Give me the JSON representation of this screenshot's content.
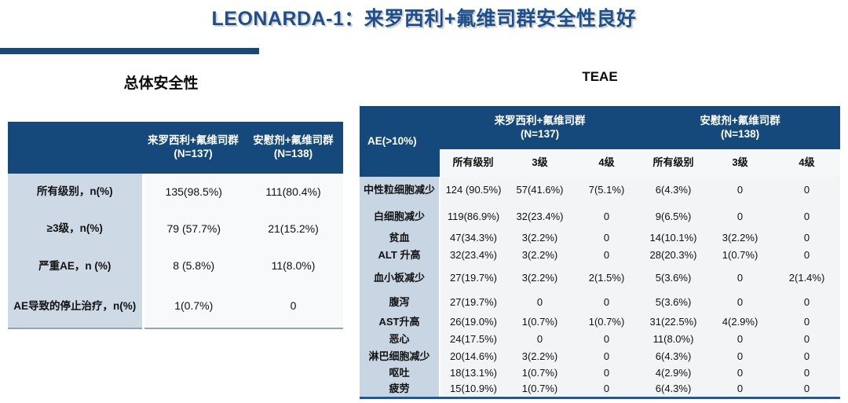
{
  "slide": {
    "title": "LEONARDA-1：来罗西利+氟维司群安全性良好",
    "accent_color": "#15497C"
  },
  "overall_safety": {
    "section_title": "总体安全性",
    "column_groups": [
      {
        "label": "来罗西利+氟维司群",
        "n": "(N=137)"
      },
      {
        "label": "安慰剂+氟维司群",
        "n": "(N=138)"
      }
    ],
    "rows": [
      {
        "label": "所有级别，n(%)",
        "values": [
          "135(98.5%)",
          "111(80.4%)"
        ]
      },
      {
        "label": "≥3级，n(%)",
        "values": [
          "79 (57.7%)",
          "21(15.2%)"
        ]
      },
      {
        "label": "严重AE，n (%)",
        "values": [
          "8 (5.8%)",
          "11(8.0%)"
        ]
      },
      {
        "label": "AE导致的停止治疗，n(%)",
        "values": [
          "1(0.7%)",
          "0"
        ]
      }
    ]
  },
  "teae": {
    "section_title": "TEAE",
    "row_header": "AE(>10%)",
    "column_groups": [
      {
        "label": "来罗西利+氟维司群",
        "n": "(N=137)"
      },
      {
        "label": "安慰剂+氟维司群",
        "n": "(N=138)"
      }
    ],
    "sub_columns": [
      "所有级别",
      "3级",
      "4级",
      "所有级别",
      "3级",
      "4级"
    ],
    "rows": [
      {
        "label": "中性粒细胞减少",
        "values": [
          "124 (90.5%)",
          "57(41.6%)",
          "7(5.1%)",
          "6(4.3%)",
          "0",
          "0"
        ]
      },
      {
        "label": "白细胞减少",
        "values": [
          "119(86.9%)",
          "32(23.4%)",
          "0",
          "9(6.5%)",
          "0",
          "0"
        ]
      },
      {
        "label": "贫血",
        "values": [
          "47(34.3%)",
          "3(2.2%)",
          "0",
          "14(10.1%)",
          "3(2.2%)",
          "0"
        ]
      },
      {
        "label": "ALT 升高",
        "values": [
          "32(23.4%)",
          "3(2.2%)",
          "0",
          "28(20.3%)",
          "1(0.7%)",
          "0"
        ]
      },
      {
        "label": "血小板减少",
        "values": [
          "27(19.7%)",
          "3(2.2%)",
          "2(1.5%)",
          "5(3.6%)",
          "0",
          "2(1.4%)"
        ]
      },
      {
        "label": "腹泻",
        "values": [
          "27(19.7%)",
          "0",
          "0",
          "5(3.6%)",
          "0",
          "0"
        ]
      },
      {
        "label": "AST升高",
        "values": [
          "26(19.0%)",
          "1(0.7%)",
          "1(0.7%)",
          "31(22.5%)",
          "4(2.9%)",
          "0"
        ]
      },
      {
        "label": "恶心",
        "values": [
          "24(17.5%)",
          "0",
          "0",
          "11(8.0%)",
          "0",
          "0"
        ]
      },
      {
        "label": "淋巴细胞减少",
        "values": [
          "20(14.6%)",
          "3(2.2%)",
          "0",
          "6(4.3%)",
          "0",
          "0"
        ]
      },
      {
        "label": "呕吐",
        "values": [
          "18(13.1%)",
          "1(0.7%)",
          "0",
          "4(2.9%)",
          "0",
          "0"
        ]
      },
      {
        "label": "疲劳",
        "values": [
          "15(10.9%)",
          "1(0.7%)",
          "0",
          "6(4.3%)",
          "0",
          "0"
        ]
      }
    ]
  }
}
